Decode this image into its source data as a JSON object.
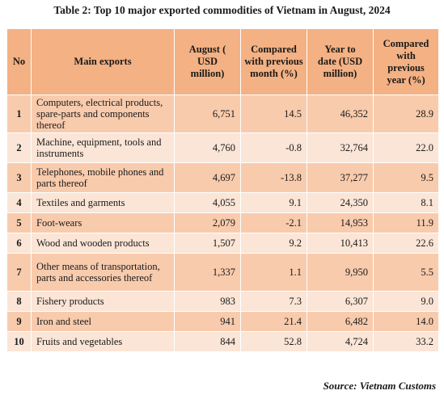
{
  "title": "Table 2: Top 10 major exported commodities  of Vietnam in August, 2024",
  "headers": {
    "no": "No",
    "main_exports": "Main exports",
    "august": "August ( USD million)",
    "mom": "Compared with previous month (%)",
    "ytd": "Year to date (USD million)",
    "yoy": "Compared with previous year (%)"
  },
  "rows": [
    {
      "no": "1",
      "name": "Computers, electrical products, spare-parts and components thereof",
      "august": "6,751",
      "mom": "14.5",
      "ytd": "46,352",
      "yoy": "28.9"
    },
    {
      "no": "2",
      "name": "Machine, equipment, tools and instruments",
      "august": "4,760",
      "mom": "-0.8",
      "ytd": "32,764",
      "yoy": "22.0"
    },
    {
      "no": "3",
      "name": "Telephones, mobile phones  and  parts thereof",
      "august": "4,697",
      "mom": "-13.8",
      "ytd": "37,277",
      "yoy": "9.5"
    },
    {
      "no": "4",
      "name": "Textiles and garments",
      "august": "4,055",
      "mom": "9.1",
      "ytd": "24,350",
      "yoy": "8.1"
    },
    {
      "no": "5",
      "name": "Foot-wears",
      "august": "2,079",
      "mom": "-2.1",
      "ytd": "14,953",
      "yoy": "11.9"
    },
    {
      "no": "6",
      "name": "Wood and wooden products",
      "august": "1,507",
      "mom": "9.2",
      "ytd": "10,413",
      "yoy": "22.6"
    },
    {
      "no": "7",
      "name": "Other means of transportation, parts and accessories thereof",
      "august": "1,337",
      "mom": "1.1",
      "ytd": "9,950",
      "yoy": "5.5"
    },
    {
      "no": "8",
      "name": "Fishery products",
      "august": "983",
      "mom": "7.3",
      "ytd": "6,307",
      "yoy": "9.0"
    },
    {
      "no": "9",
      "name": "Iron and steel",
      "august": "941",
      "mom": "21.4",
      "ytd": "6,482",
      "yoy": "14.0"
    },
    {
      "no": "10",
      "name": "Fruits and vegetables",
      "august": "844",
      "mom": "52.8",
      "ytd": "4,724",
      "yoy": "33.2"
    }
  ],
  "source": "Source: Vietnam Customs"
}
